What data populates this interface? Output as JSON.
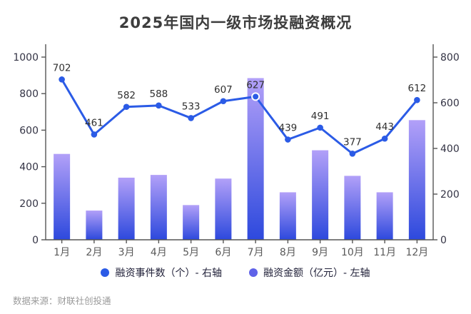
{
  "title": "2025年国内一级市场投融资概况",
  "footer": "数据来源：财联社创投通",
  "legend": [
    {
      "label": "融资事件数（个）- 右轴",
      "color": "#2b5be6"
    },
    {
      "label": "融资金额（亿元）- 左轴",
      "color": "#5f62e8"
    }
  ],
  "colors": {
    "line": "#2b5be6",
    "bar_gradient_top": "#b2a0f8",
    "bar_gradient_bottom": "#2d49dd",
    "axis": "#555555",
    "y_tick_label": "#333344",
    "x_tick_label": "#595959",
    "data_label": "#2f2f2f",
    "highlight_ring": "#ffffff"
  },
  "chart_data": {
    "type": "bar",
    "subtype": "combo-bar-line",
    "title": "2025年国内一级市场投融资概况",
    "categories": [
      "1月",
      "2月",
      "3月",
      "4月",
      "5月",
      "6月",
      "7月",
      "8月",
      "9月",
      "10月",
      "11月",
      "12月"
    ],
    "series": [
      {
        "name": "融资事件数（个）- 右轴",
        "type": "line",
        "axis": "right",
        "values": [
          702,
          461,
          582,
          588,
          533,
          607,
          627,
          439,
          491,
          377,
          443,
          612
        ],
        "data_labels": true,
        "highlight_index": 6
      },
      {
        "name": "融资金额（亿元）- 左轴",
        "type": "bar",
        "axis": "left",
        "values": [
          470,
          160,
          340,
          355,
          190,
          335,
          885,
          260,
          490,
          350,
          260,
          655
        ],
        "data_labels": false
      }
    ],
    "left_axis": {
      "ticks": [
        0,
        200,
        400,
        600,
        800,
        1000
      ],
      "range": [
        0,
        1070
      ]
    },
    "right_axis": {
      "ticks": [
        0,
        200,
        400,
        600,
        800
      ],
      "range": [
        0,
        856
      ]
    },
    "xlabel": "",
    "ylabel": "",
    "grid": false,
    "legend_position": "bottom"
  }
}
